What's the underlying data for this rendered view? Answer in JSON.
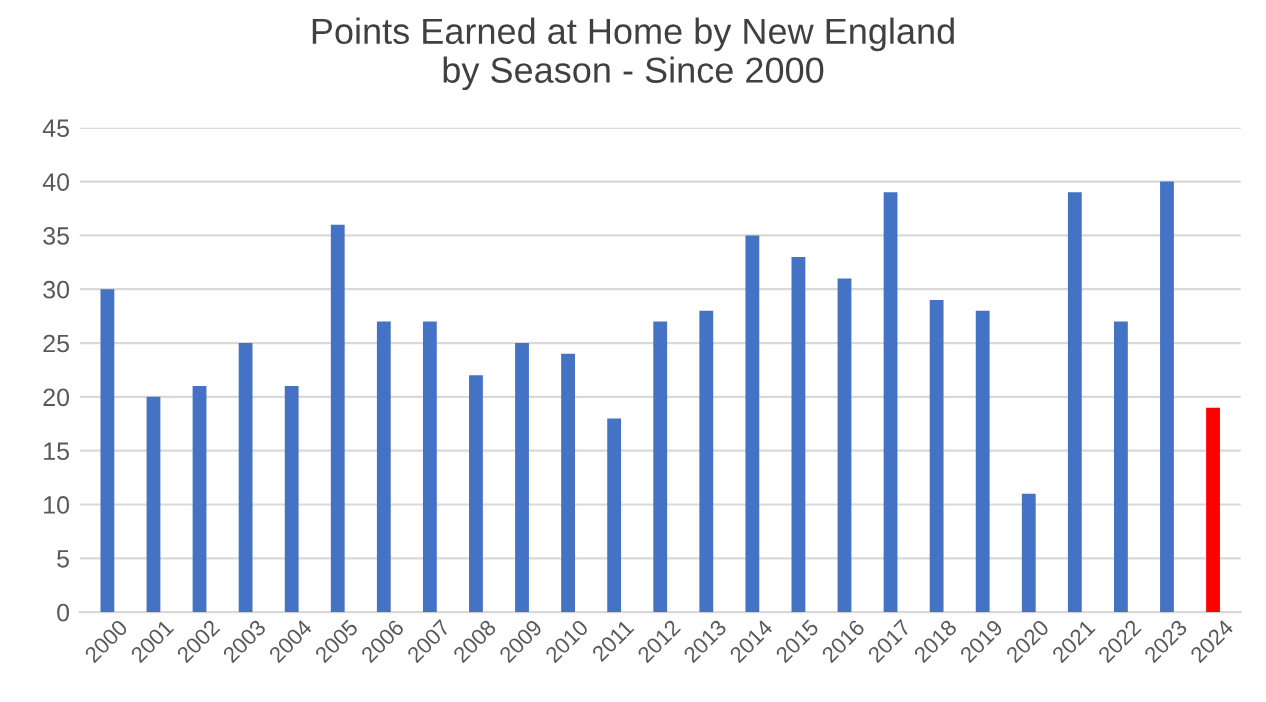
{
  "chart_data": {
    "type": "bar",
    "title": "Points Earned at Home by New England\nby Season - Since 2000",
    "categories": [
      "2000",
      "2001",
      "2002",
      "2003",
      "2004",
      "2005",
      "2006",
      "2007",
      "2008",
      "2009",
      "2010",
      "2011",
      "2012",
      "2013",
      "2014",
      "2015",
      "2016",
      "2017",
      "2018",
      "2019",
      "2020",
      "2021",
      "2022",
      "2023",
      "2024"
    ],
    "values": [
      30,
      20,
      21,
      25,
      21,
      36,
      27,
      27,
      22,
      25,
      24,
      18,
      27,
      28,
      35,
      33,
      31,
      39,
      29,
      28,
      11,
      39,
      27,
      40,
      19
    ],
    "colors": [
      "#4472c4",
      "#4472c4",
      "#4472c4",
      "#4472c4",
      "#4472c4",
      "#4472c4",
      "#4472c4",
      "#4472c4",
      "#4472c4",
      "#4472c4",
      "#4472c4",
      "#4472c4",
      "#4472c4",
      "#4472c4",
      "#4472c4",
      "#4472c4",
      "#4472c4",
      "#4472c4",
      "#4472c4",
      "#4472c4",
      "#4472c4",
      "#4472c4",
      "#4472c4",
      "#4472c4",
      "#ff0000"
    ],
    "ylim": [
      0,
      45
    ],
    "yticks": [
      0,
      5,
      10,
      15,
      20,
      25,
      30,
      35,
      40,
      45
    ],
    "grid": "y",
    "legend": false
  }
}
